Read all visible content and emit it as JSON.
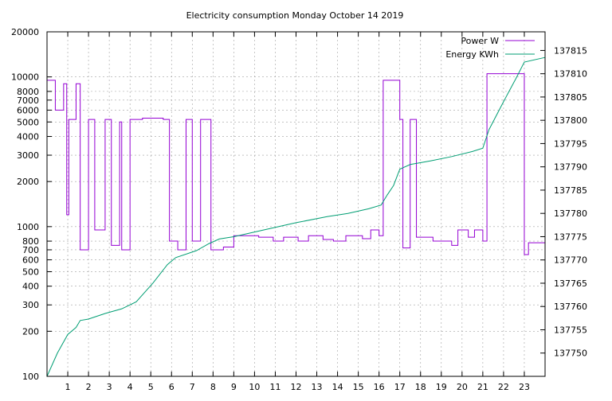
{
  "chart_data": {
    "type": "line",
    "title": "Electricity consumption Monday October 14 2019",
    "xlabel": "",
    "ylabel": "",
    "y2label": "",
    "grid": true,
    "legend_position": "top-right",
    "x_range": [
      0,
      24
    ],
    "x_ticks": [
      1,
      2,
      3,
      4,
      5,
      6,
      7,
      8,
      9,
      10,
      11,
      12,
      13,
      14,
      15,
      16,
      17,
      18,
      19,
      20,
      21,
      22,
      23
    ],
    "y_scale": "log",
    "y_range": [
      100,
      20000
    ],
    "y_ticks": [
      100,
      200,
      300,
      400,
      500,
      600,
      700,
      800,
      1000,
      2000,
      3000,
      4000,
      5000,
      6000,
      7000,
      8000,
      10000,
      20000
    ],
    "y2_range": [
      137745,
      137819
    ],
    "y2_ticks": [
      137750,
      137755,
      137760,
      137765,
      137770,
      137775,
      137780,
      137785,
      137790,
      137795,
      137800,
      137805,
      137810,
      137815
    ],
    "series": [
      {
        "name": "Power W",
        "axis": "left",
        "color": "#9400d3",
        "steps": [
          [
            0,
            9500
          ],
          [
            0.4,
            6000
          ],
          [
            0.8,
            9000
          ],
          [
            0.95,
            1200
          ],
          [
            1.05,
            5200
          ],
          [
            1.4,
            9000
          ],
          [
            1.6,
            700
          ],
          [
            2.0,
            5200
          ],
          [
            2.3,
            950
          ],
          [
            2.8,
            5200
          ],
          [
            3.1,
            750
          ],
          [
            3.5,
            5000
          ],
          [
            3.6,
            700
          ],
          [
            4.0,
            5200
          ],
          [
            4.6,
            5300
          ],
          [
            5.6,
            5200
          ],
          [
            5.9,
            800
          ],
          [
            6.3,
            700
          ],
          [
            6.7,
            5200
          ],
          [
            7.0,
            800
          ],
          [
            7.4,
            5200
          ],
          [
            7.9,
            700
          ],
          [
            8.5,
            730
          ],
          [
            9.0,
            870
          ],
          [
            10.2,
            850
          ],
          [
            10.9,
            800
          ],
          [
            11.4,
            850
          ],
          [
            12.1,
            800
          ],
          [
            12.6,
            870
          ],
          [
            13.3,
            820
          ],
          [
            13.8,
            800
          ],
          [
            14.4,
            870
          ],
          [
            15.2,
            830
          ],
          [
            15.6,
            950
          ],
          [
            16.0,
            870
          ],
          [
            16.2,
            9500
          ],
          [
            17.0,
            5200
          ],
          [
            17.15,
            720
          ],
          [
            17.5,
            5200
          ],
          [
            17.8,
            850
          ],
          [
            18.6,
            800
          ],
          [
            19.5,
            750
          ],
          [
            19.8,
            950
          ],
          [
            20.3,
            850
          ],
          [
            20.6,
            950
          ],
          [
            21.0,
            800
          ],
          [
            21.2,
            10500
          ],
          [
            23.0,
            650
          ],
          [
            23.2,
            780
          ],
          [
            24.0,
            830
          ]
        ]
      },
      {
        "name": "Energy KWh",
        "axis": "right",
        "color": "#009e73",
        "points": [
          [
            0,
            137745
          ],
          [
            0.5,
            137750
          ],
          [
            1.0,
            137754
          ],
          [
            1.4,
            137755.5
          ],
          [
            1.6,
            137757
          ],
          [
            2.0,
            137757.3
          ],
          [
            2.8,
            137758.5
          ],
          [
            3.6,
            137759.5
          ],
          [
            4.3,
            137761
          ],
          [
            5.1,
            137765
          ],
          [
            5.8,
            137769
          ],
          [
            6.2,
            137770.5
          ],
          [
            7.2,
            137772
          ],
          [
            7.8,
            137773.5
          ],
          [
            8.3,
            137774.5
          ],
          [
            9.0,
            137775
          ],
          [
            10.0,
            137776
          ],
          [
            12.0,
            137778
          ],
          [
            13.5,
            137779.3
          ],
          [
            14.5,
            137780
          ],
          [
            15.5,
            137781
          ],
          [
            16.1,
            137781.8
          ],
          [
            16.4,
            137784
          ],
          [
            16.7,
            137786
          ],
          [
            17.0,
            137789.5
          ],
          [
            17.5,
            137790.5
          ],
          [
            18.5,
            137791.3
          ],
          [
            19.5,
            137792.2
          ],
          [
            20.5,
            137793.3
          ],
          [
            21.0,
            137794
          ],
          [
            21.3,
            137798
          ],
          [
            22.0,
            137804
          ],
          [
            22.6,
            137809
          ],
          [
            23.0,
            137812.5
          ],
          [
            24.0,
            137813.5
          ]
        ]
      }
    ]
  }
}
